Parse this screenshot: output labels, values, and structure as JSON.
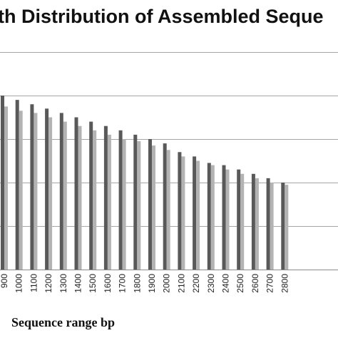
{
  "chart_data": {
    "type": "bar",
    "title": "Length Distribution of Assembled Sequences",
    "visible_title": "th Distribution of Assembled Seque",
    "xlabel": "Sequence range bp",
    "ylabel": "",
    "categories": [
      "900",
      "1000",
      "1100",
      "1200",
      "1300",
      "1400",
      "1500",
      "1600",
      "1700",
      "1800",
      "1900",
      "2000",
      "2100",
      "2200",
      "2300",
      "2400",
      "2500",
      "2600",
      "2700",
      "2800"
    ],
    "series": [
      {
        "values": [
          4.0,
          3.9,
          3.8,
          3.7,
          3.6,
          3.5,
          3.4,
          3.3,
          3.2,
          3.1,
          3.0,
          2.9,
          2.7,
          2.6,
          2.45,
          2.4,
          2.3,
          2.2,
          2.1,
          2.0
        ],
        "color": "#595959"
      },
      {
        "values": [
          3.75,
          3.65,
          3.6,
          3.5,
          3.4,
          3.3,
          3.2,
          3.1,
          3.0,
          2.95,
          2.85,
          2.75,
          2.6,
          2.5,
          2.4,
          2.3,
          2.2,
          2.1,
          2.0,
          1.95
        ],
        "color": "#b3b3b3"
      }
    ],
    "ylim": [
      0,
      5
    ],
    "grid": true,
    "legend": "none"
  }
}
